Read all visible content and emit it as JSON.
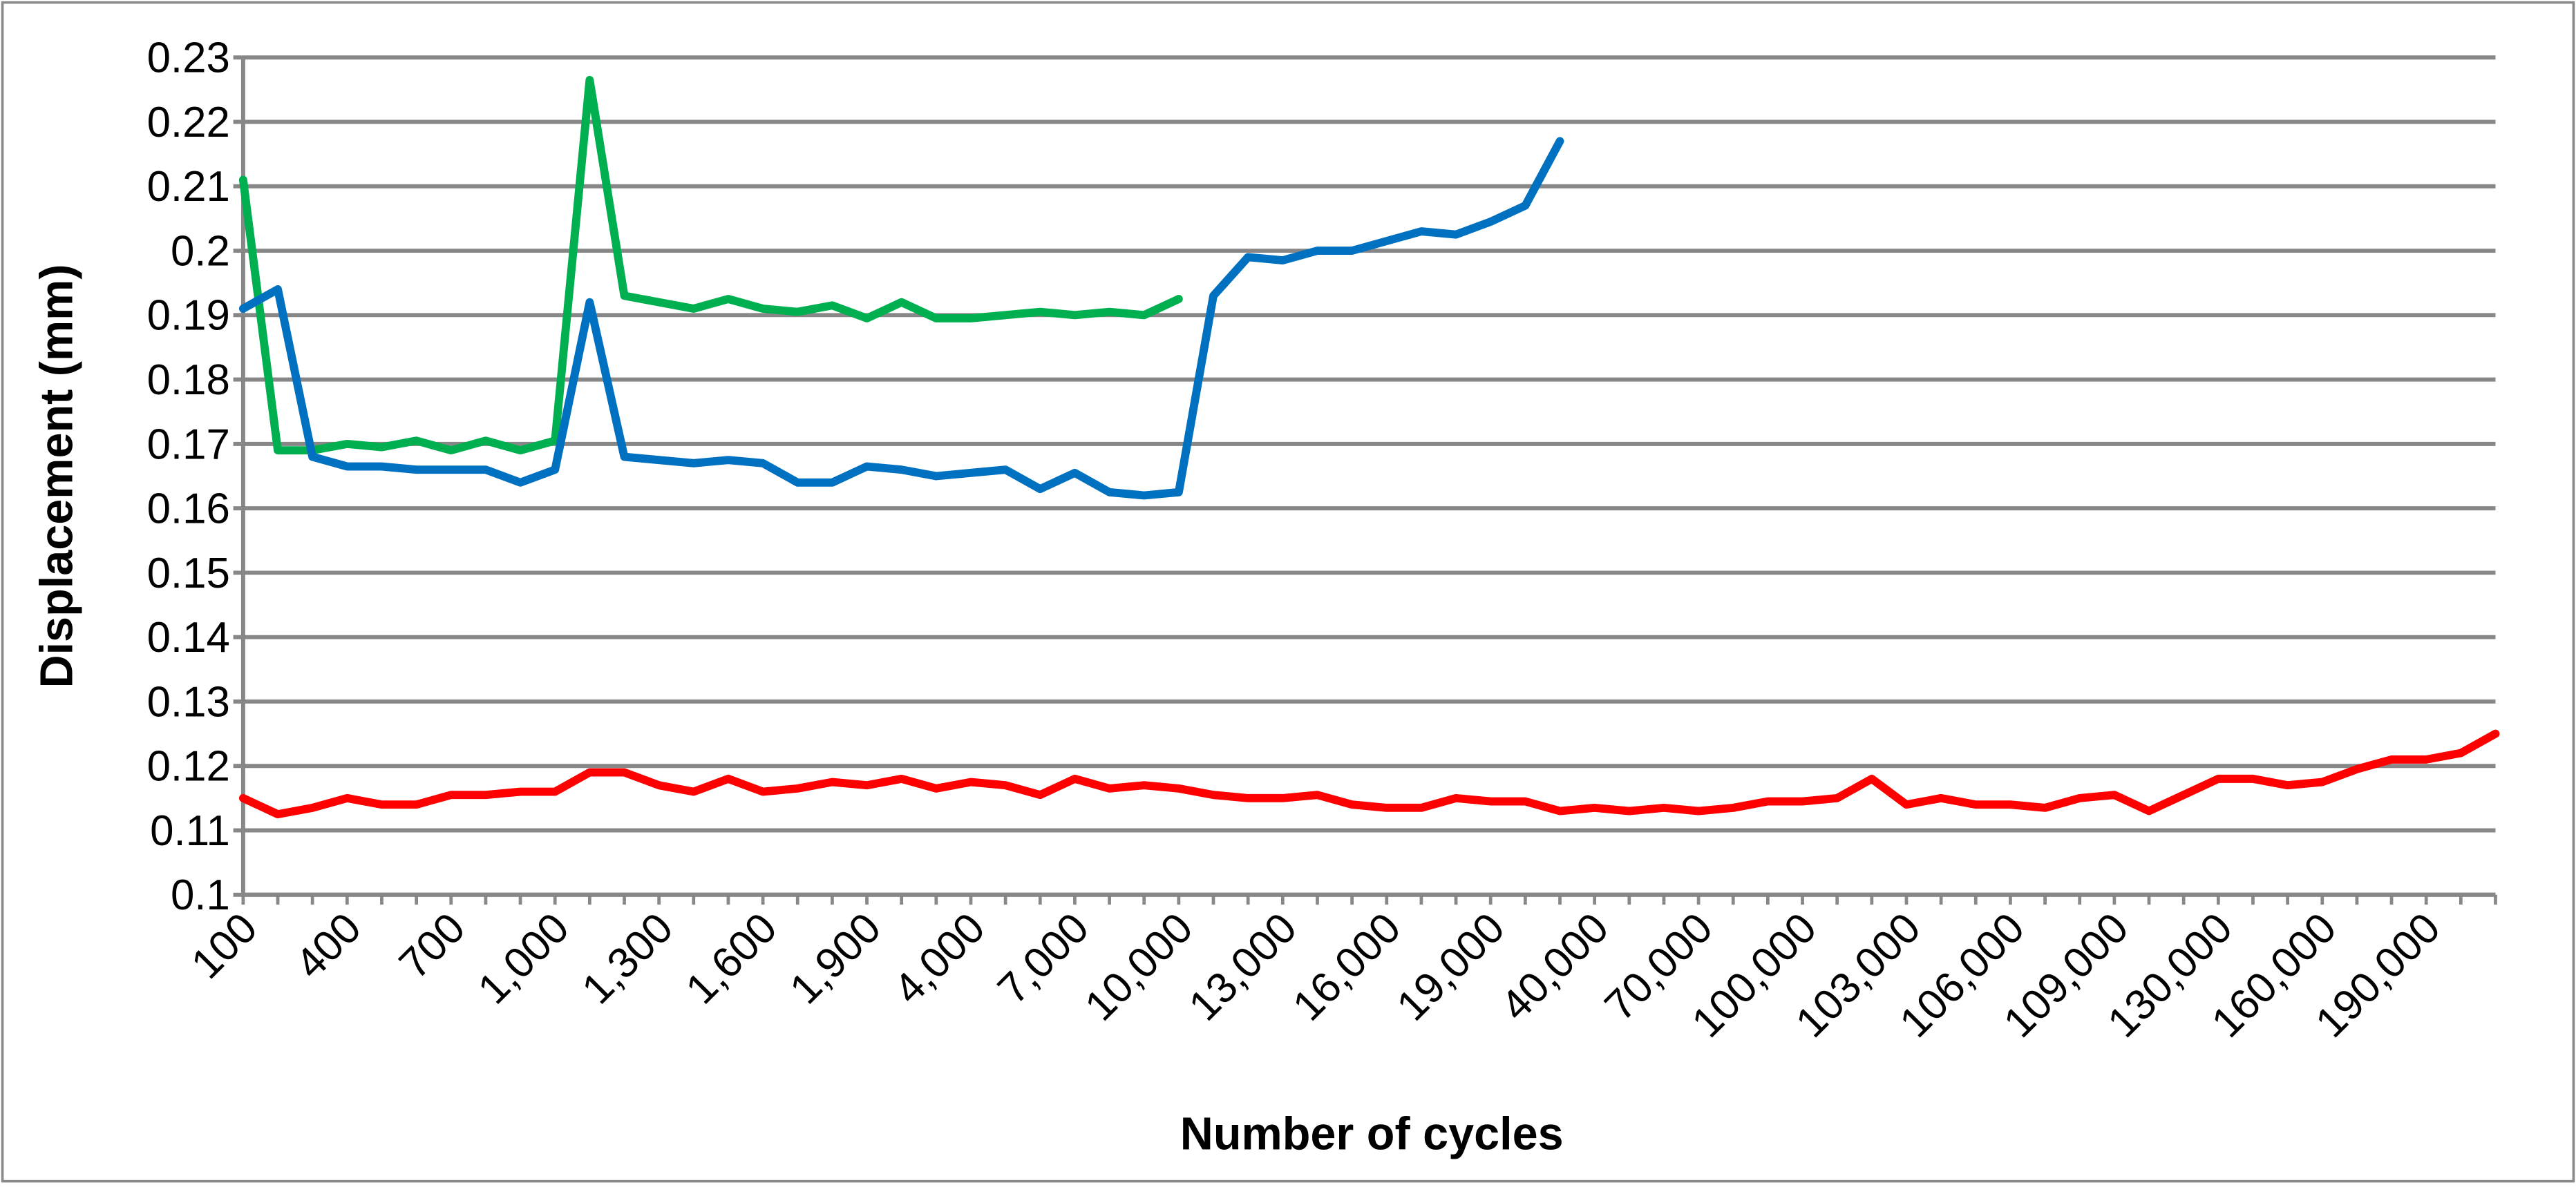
{
  "chart_data": {
    "type": "line",
    "xlabel": "Number of cycles",
    "ylabel": "Displacement (mm)",
    "categories": [
      "100",
      null,
      null,
      "400",
      null,
      null,
      "700",
      null,
      null,
      "1,000",
      null,
      null,
      "1,300",
      null,
      null,
      "1,600",
      null,
      null,
      "1,900",
      null,
      null,
      "4,000",
      null,
      null,
      "7,000",
      null,
      null,
      "10,000",
      null,
      null,
      "13,000",
      null,
      null,
      "16,000",
      null,
      null,
      "19,000",
      null,
      null,
      "40,000",
      null,
      null,
      "70,000",
      null,
      null,
      "100,000",
      null,
      null,
      "103,000",
      null,
      null,
      "106,000",
      null,
      null,
      "109,000",
      null,
      null,
      "130,000",
      null,
      null,
      "160,000",
      null,
      null,
      "190,000",
      null,
      null
    ],
    "series": [
      {
        "color": "#00b050",
        "values": [
          0.211,
          0.169,
          0.169,
          0.17,
          0.1695,
          0.1705,
          0.169,
          0.1705,
          0.169,
          0.1705,
          0.2265,
          0.193,
          0.192,
          0.191,
          0.1925,
          0.191,
          0.1905,
          0.1915,
          0.1895,
          0.192,
          0.1895,
          0.1895,
          0.19,
          0.1905,
          0.19,
          0.1905,
          0.19,
          0.1925,
          null,
          null,
          null,
          null,
          null,
          null,
          null,
          null,
          null,
          null,
          null,
          null,
          null,
          null,
          null,
          null,
          null,
          null,
          null,
          null,
          null,
          null,
          null,
          null,
          null,
          null,
          null,
          null,
          null,
          null,
          null,
          null,
          null,
          null,
          null,
          null,
          null,
          null
        ]
      },
      {
        "color": "#0070c0",
        "values": [
          0.191,
          0.194,
          0.168,
          0.1665,
          0.1665,
          0.166,
          0.166,
          0.166,
          0.164,
          0.166,
          0.192,
          0.168,
          0.1675,
          0.167,
          0.1675,
          0.167,
          0.164,
          0.164,
          0.1665,
          0.166,
          0.165,
          0.1655,
          0.166,
          0.163,
          0.1655,
          0.1625,
          0.162,
          0.1625,
          0.193,
          0.199,
          0.1985,
          0.2,
          0.2,
          0.2015,
          0.203,
          0.2025,
          0.2045,
          0.207,
          0.217,
          null,
          null,
          null,
          null,
          null,
          null,
          null,
          null,
          null,
          null,
          null,
          null,
          null,
          null,
          null,
          null,
          null,
          null,
          null,
          null,
          null,
          null,
          null,
          null,
          null,
          null,
          null
        ]
      },
      {
        "color": "#ff0000",
        "values": [
          0.115,
          0.1125,
          0.1135,
          0.115,
          0.114,
          0.114,
          0.1155,
          0.1155,
          0.116,
          0.116,
          0.119,
          0.119,
          0.117,
          0.116,
          0.118,
          0.116,
          0.1165,
          0.1175,
          0.117,
          0.118,
          0.1165,
          0.1175,
          0.117,
          0.1155,
          0.118,
          0.1165,
          0.117,
          0.1165,
          0.1155,
          0.115,
          0.115,
          0.1155,
          0.114,
          0.1135,
          0.1135,
          0.115,
          0.1145,
          0.1145,
          0.113,
          0.1135,
          0.113,
          0.1135,
          0.113,
          0.1135,
          0.1145,
          0.1145,
          0.115,
          0.118,
          0.114,
          0.115,
          0.114,
          0.114,
          0.1135,
          0.115,
          0.1155,
          0.113,
          0.1155,
          0.118,
          0.118,
          0.117,
          0.1175,
          0.1195,
          0.121,
          0.121,
          0.122,
          0.125
        ]
      }
    ],
    "ylim": [
      0.1,
      0.23
    ],
    "yticks": [
      0.1,
      0.11,
      0.12,
      0.13,
      0.14,
      0.15,
      0.16,
      0.17,
      0.18,
      0.19,
      0.2,
      0.21,
      0.22,
      0.23
    ],
    "grid": true
  }
}
